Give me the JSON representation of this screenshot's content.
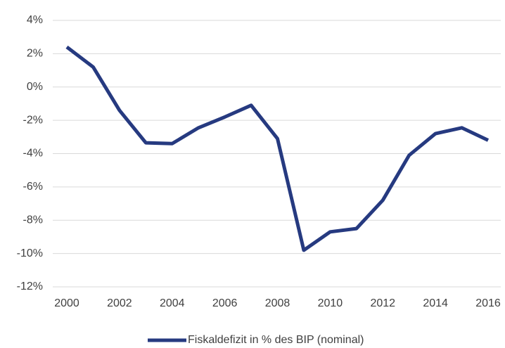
{
  "chart_data": {
    "type": "line",
    "x": [
      2000,
      2001,
      2002,
      2003,
      2004,
      2005,
      2006,
      2007,
      2008,
      2009,
      2010,
      2011,
      2012,
      2013,
      2014,
      2015,
      2016
    ],
    "series": [
      {
        "name": "Fiskaldefizit in % des BIP (nominal)",
        "color": "#263a80",
        "values": [
          2.4,
          1.2,
          -1.4,
          -3.35,
          -3.4,
          -2.45,
          -1.8,
          -1.1,
          -3.1,
          -9.8,
          -8.7,
          -8.5,
          -6.8,
          -4.1,
          -2.8,
          -2.45,
          -3.2
        ]
      }
    ],
    "xlim": [
      2000,
      2016
    ],
    "xticks": [
      2000,
      2002,
      2004,
      2006,
      2008,
      2010,
      2012,
      2014,
      2016
    ],
    "ylim": [
      -12,
      4
    ],
    "yticks": [
      {
        "value": -12,
        "label": "-12%"
      },
      {
        "value": -10,
        "label": "-10%"
      },
      {
        "value": -8,
        "label": "-8%"
      },
      {
        "value": -6,
        "label": "-6%"
      },
      {
        "value": -4,
        "label": "-4%"
      },
      {
        "value": -2,
        "label": "-2%"
      },
      {
        "value": 0,
        "label": "0%"
      },
      {
        "value": 2,
        "label": "2%"
      },
      {
        "value": 4,
        "label": "4%"
      }
    ],
    "grid": true,
    "legend": "bottom"
  }
}
